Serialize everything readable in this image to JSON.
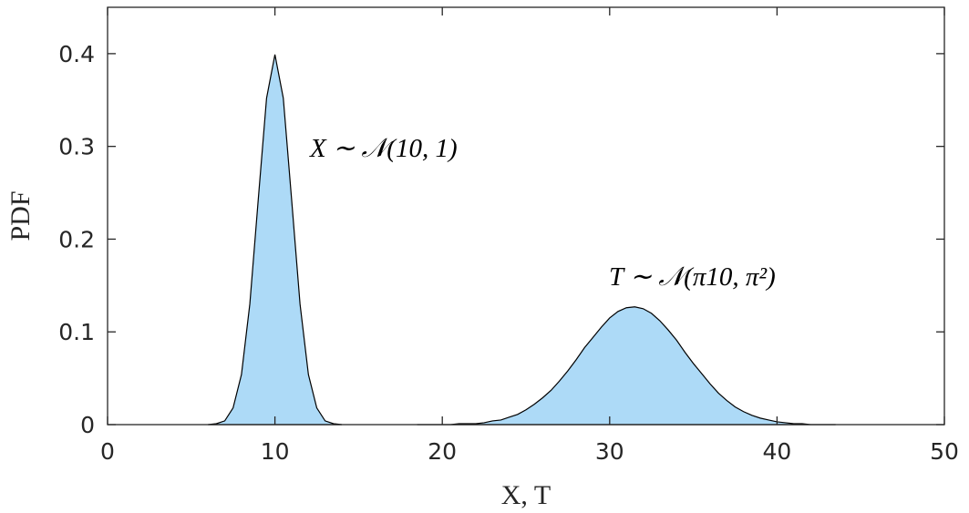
{
  "chart_data": {
    "type": "area",
    "xlabel": "X, T",
    "ylabel": "PDF",
    "annotations": [
      "X ∼ 𝒩(10, 1)",
      "T ∼ 𝒩(π10, π²)"
    ],
    "x": [
      6,
      6.5,
      7,
      7.5,
      8,
      8.5,
      9,
      9.5,
      10,
      10.5,
      11,
      11.5,
      12,
      12.5,
      13,
      13.5,
      14,
      14.5,
      15,
      15.5,
      16,
      16.5,
      17,
      17.5,
      18,
      18.5,
      19,
      19.5,
      20,
      20.5,
      21,
      21.5,
      22,
      22.5,
      23,
      23.5,
      24,
      24.5,
      25,
      25.5,
      26,
      26.5,
      27,
      27.5,
      28,
      28.5,
      29,
      29.5,
      30,
      30.5,
      31,
      31.5,
      32,
      32.5,
      33,
      33.5,
      34,
      34.5,
      35,
      35.5,
      36,
      36.5,
      37,
      37.5,
      38,
      38.5,
      39,
      39.5,
      40,
      40.5,
      41,
      41.5,
      42,
      42.5,
      43,
      43.5
    ],
    "series": [
      {
        "name": "X",
        "color": "#addaf7",
        "values": [
          0.0,
          0.001,
          0.004,
          0.018,
          0.054,
          0.13,
          0.242,
          0.352,
          0.399,
          0.352,
          0.242,
          0.13,
          0.054,
          0.018,
          0.004,
          0.001,
          0.0,
          null,
          null,
          null,
          null,
          null,
          null,
          null,
          null,
          null,
          null,
          null,
          null,
          null,
          null,
          null,
          null,
          null,
          null,
          null,
          null,
          null,
          null,
          null,
          null,
          null,
          null,
          null,
          null,
          null,
          null,
          null,
          null,
          null,
          null,
          null,
          null,
          null,
          null,
          null,
          null,
          null,
          null,
          null,
          null,
          null,
          null,
          null,
          null,
          null,
          null,
          null,
          null,
          null,
          null,
          null,
          null,
          null,
          null,
          null
        ]
      },
      {
        "name": "T",
        "color": "#addaf7",
        "values": [
          null,
          null,
          null,
          null,
          null,
          null,
          null,
          null,
          null,
          null,
          null,
          null,
          null,
          null,
          null,
          null,
          null,
          null,
          null,
          null,
          null,
          null,
          null,
          null,
          null,
          0.0,
          0.0,
          0.0,
          0.0,
          0.0,
          0.001,
          0.001,
          0.001,
          0.002,
          0.004,
          0.005,
          0.008,
          0.011,
          0.016,
          0.022,
          0.029,
          0.037,
          0.047,
          0.058,
          0.07,
          0.083,
          0.094,
          0.105,
          0.115,
          0.122,
          0.126,
          0.127,
          0.125,
          0.12,
          0.112,
          0.102,
          0.091,
          0.078,
          0.066,
          0.055,
          0.044,
          0.034,
          0.026,
          0.019,
          0.014,
          0.01,
          0.007,
          0.005,
          0.003,
          0.002,
          0.001,
          0.001,
          0.0,
          0.0,
          0.0,
          0.0
        ]
      }
    ],
    "xlim": [
      0,
      50
    ],
    "xticks": [
      0,
      10,
      20,
      30,
      40,
      50
    ],
    "ylim": [
      0,
      0.45
    ],
    "yticks": [
      0,
      0.1,
      0.2,
      0.3,
      0.4
    ],
    "grid": false
  }
}
